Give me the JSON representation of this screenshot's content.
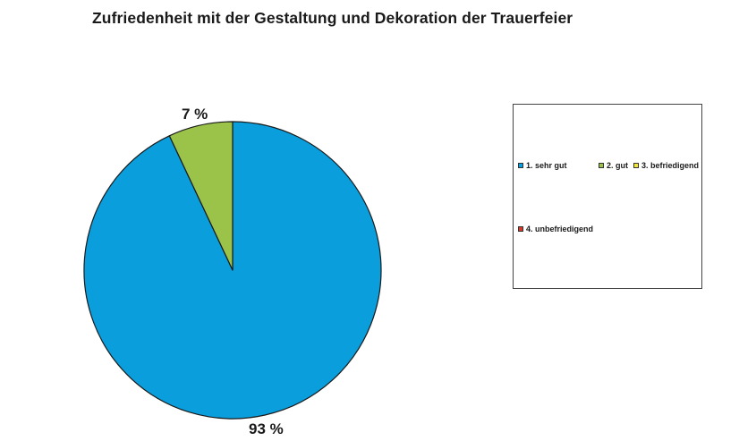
{
  "chart_data": {
    "type": "pie",
    "title": "Zufriedenheit mit der Gestaltung und Dekoration der Trauerfeier",
    "slices": [
      {
        "label": "1. sehr gut",
        "value": 93,
        "color": "#0b9edc",
        "display": "93 %"
      },
      {
        "label": "2. gut",
        "value": 7,
        "color": "#9bc34a",
        "display": "7 %"
      },
      {
        "label": "3. befriedigend",
        "value": 0,
        "color": "#f5e82a",
        "display": ""
      },
      {
        "label": "4. unbefriedigend",
        "value": 0,
        "color": "#d43a2f",
        "display": ""
      }
    ],
    "legend_position": "right"
  }
}
